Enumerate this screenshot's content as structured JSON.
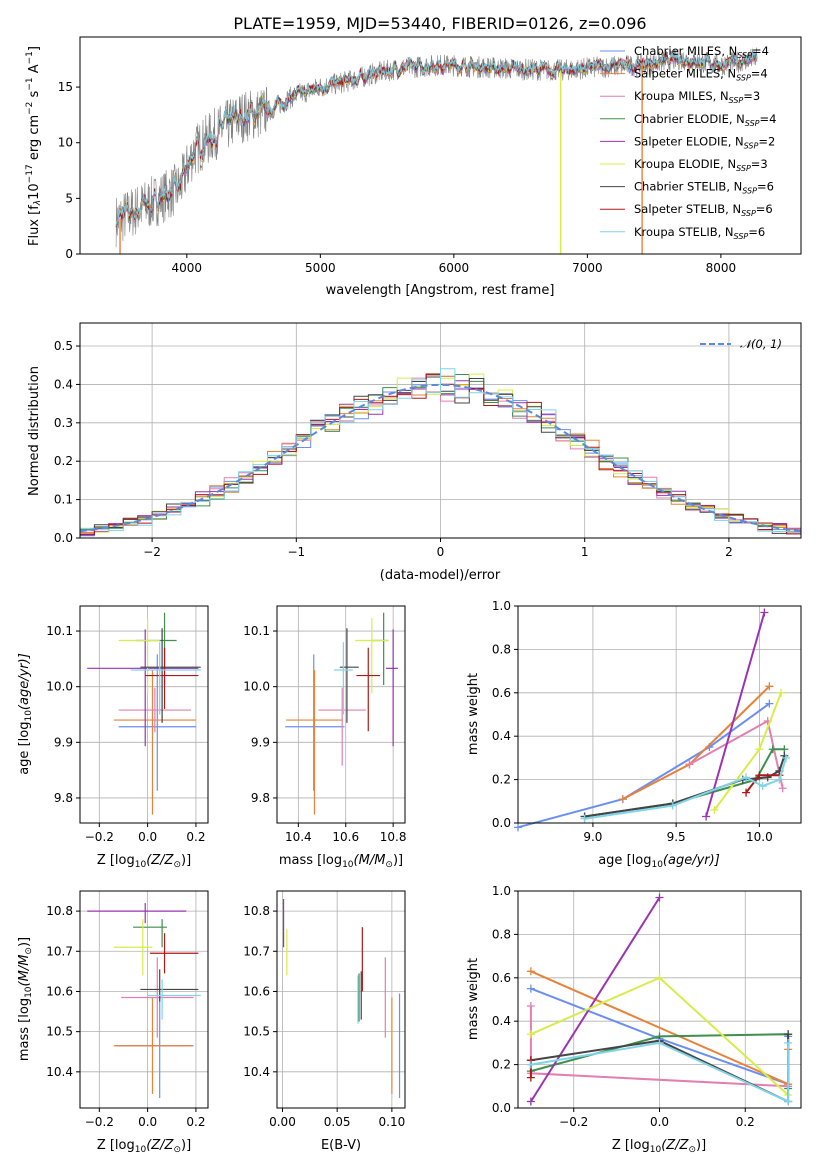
{
  "title": "PLATE=1959, MJD=53440, FIBERID=0126, z=0.096",
  "models": [
    {
      "name": "Chabrier MILES, N$_{SSP}$=4",
      "leg_main": "Chabrier MILES, N",
      "leg_sub": "SSP",
      "leg_tail": "=4",
      "color": "#6b8ff0"
    },
    {
      "name": "Salpeter MILES, N$_{SSP}$=4",
      "leg_main": "Salpeter MILES, N",
      "leg_sub": "SSP",
      "leg_tail": "=4",
      "color": "#e8823a"
    },
    {
      "name": "Kroupa MILES, N$_{SSP}$=3",
      "leg_main": "Kroupa MILES, N",
      "leg_sub": "SSP",
      "leg_tail": "=3",
      "color": "#e27fb0"
    },
    {
      "name": "Chabrier ELODIE, N$_{SSP}$=4",
      "leg_main": "Chabrier ELODIE, N",
      "leg_sub": "SSP",
      "leg_tail": "=4",
      "color": "#3f8f4f"
    },
    {
      "name": "Salpeter ELODIE, N$_{SSP}$=2",
      "leg_main": "Salpeter ELODIE, N",
      "leg_sub": "SSP",
      "leg_tail": "=2",
      "color": "#9b33b3"
    },
    {
      "name": "Kroupa ELODIE, N$_{SSP}$=3",
      "leg_main": "Kroupa ELODIE, N",
      "leg_sub": "SSP",
      "leg_tail": "=3",
      "color": "#d8ec4a"
    },
    {
      "name": "Chabrier STELIB, N$_{SSP}$=6",
      "leg_main": "Chabrier STELIB, N",
      "leg_sub": "SSP",
      "leg_tail": "=6",
      "color": "#454545"
    },
    {
      "name": "Salpeter STELIB, N$_{SSP}$=6",
      "leg_main": "Salpeter STELIB, N",
      "leg_sub": "SSP",
      "leg_tail": "=6",
      "color": "#b01818"
    },
    {
      "name": "Kroupa STELIB, N$_{SSP}$=6",
      "leg_main": "Kroupa STELIB, N",
      "leg_sub": "SSP",
      "leg_tail": "=6",
      "color": "#7fd4e8"
    }
  ],
  "data_color": "#808080",
  "chart_data": [
    {
      "id": "spectrum",
      "type": "line",
      "xlabel": "wavelength [Angstrom, rest frame]",
      "ylabel_main": "Flux [f",
      "ylabel_rest": "10",
      "ylabel_exp": "−17",
      "ylabel_unit": " erg cm",
      "ylabel_e2": "−2",
      "ylabel_s": " s",
      "ylabel_e1": "−1",
      "ylabel_a": " A",
      "ylabel_e3": "−1",
      "ylabel_close": "]",
      "xlim": [
        3200,
        8600
      ],
      "ylim": [
        0,
        19.5
      ],
      "xticks": [
        4000,
        5000,
        6000,
        7000,
        8000
      ],
      "yticks": [
        0,
        5,
        10,
        15
      ],
      "wavelength_range": [
        3470,
        8270
      ],
      "continuum": [
        [
          3470,
          3.0
        ],
        [
          3600,
          3.8
        ],
        [
          3800,
          5.0
        ],
        [
          3950,
          6.0
        ],
        [
          4050,
          9.2
        ],
        [
          4200,
          10.7
        ],
        [
          4400,
          12.3
        ],
        [
          4600,
          12.8
        ],
        [
          4800,
          14.2
        ],
        [
          5000,
          15.0
        ],
        [
          5200,
          15.5
        ],
        [
          5400,
          16.2
        ],
        [
          5600,
          16.7
        ],
        [
          5900,
          17.0
        ],
        [
          6200,
          16.8
        ],
        [
          6500,
          16.6
        ],
        [
          6800,
          16.5
        ],
        [
          7100,
          16.8
        ],
        [
          7400,
          17.0
        ],
        [
          7700,
          17.5
        ],
        [
          8000,
          17.0
        ],
        [
          8270,
          17.6
        ]
      ],
      "spikes": [
        [
          3500,
          0
        ],
        [
          6800,
          0
        ],
        [
          7410,
          0
        ]
      ],
      "legend_loc": "upper right"
    },
    {
      "id": "residuals",
      "type": "histogram",
      "xlabel": "(data-model)/error",
      "ylabel": "Normed distribution",
      "xlim": [
        -2.5,
        2.5
      ],
      "ylim": [
        0,
        0.56
      ],
      "xticks": [
        -2,
        -1,
        0,
        1,
        2
      ],
      "xtick_labels": [
        "−2",
        "−1",
        "0",
        "1",
        "2"
      ],
      "yticks": [
        0.0,
        0.1,
        0.2,
        0.3,
        0.4,
        0.5
      ],
      "bin_width": 0.1,
      "reference_curve": "𝒩(0, 1)",
      "legend_loc": "upper right"
    },
    {
      "id": "age_vs_Z",
      "type": "scatter",
      "xlabel_main": "Z [log",
      "xlabel_sub": "10",
      "xlabel_rest": "(Z/Z",
      "xlabel_sun": "⊙",
      "xlabel_close": ")]",
      "ylabel_main": "age  [log",
      "ylabel_sub": "10",
      "ylabel_rest": "(age/yr)]",
      "xlim": [
        -0.28,
        0.25
      ],
      "ylim": [
        9.755,
        10.145
      ],
      "xticks": [
        -0.2,
        0.0,
        0.2
      ],
      "xtick_labels": [
        "−0.2",
        "0.0",
        "0.2"
      ],
      "yticks": [
        9.8,
        9.9,
        10.0,
        10.1
      ],
      "points": [
        {
          "x": 0.04,
          "y": 9.928,
          "xerr": [
            0.16,
            0.16
          ],
          "yerr": [
            0.115,
            0.13
          ]
        },
        {
          "x": 0.02,
          "y": 9.94,
          "xerr": [
            0.16,
            0.18
          ],
          "yerr": [
            0.17,
            0.09
          ]
        },
        {
          "x": 0.03,
          "y": 9.958,
          "xerr": [
            0.15,
            0.15
          ],
          "yerr": [
            0.04,
            0.04
          ]
        },
        {
          "x": 0.07,
          "y": 10.083,
          "xerr": [
            0.12,
            0.05
          ],
          "yerr": [
            0.08,
            0.05
          ]
        },
        {
          "x": -0.01,
          "y": 10.033,
          "xerr": [
            0.24,
            0.22
          ],
          "yerr": [
            0.14,
            0.07
          ]
        },
        {
          "x": 0.0,
          "y": 10.083,
          "xerr": [
            0.12,
            0.05
          ],
          "yerr": [
            0.095,
            0.04
          ]
        },
        {
          "x": 0.06,
          "y": 10.035,
          "xerr": [
            0.09,
            0.16
          ],
          "yerr": [
            0.1,
            0.07
          ]
        },
        {
          "x": 0.07,
          "y": 10.02,
          "xerr": [
            0.08,
            0.14
          ],
          "yerr": [
            0.06,
            0.05
          ]
        },
        {
          "x": 0.05,
          "y": 10.03,
          "xerr": [
            0.12,
            0.17
          ],
          "yerr": [
            0.08,
            0.05
          ]
        }
      ]
    },
    {
      "id": "age_vs_mass",
      "type": "scatter",
      "xlabel_main": "mass [log",
      "xlabel_sub": "10",
      "xlabel_rest": "(M/M",
      "xlabel_sun": "⊙",
      "xlabel_close": ")]",
      "xlim": [
        10.31,
        10.85
      ],
      "ylim": [
        9.755,
        10.145
      ],
      "xticks": [
        10.4,
        10.6,
        10.8
      ],
      "xtick_labels": [
        "10.4",
        "10.6",
        "10.8"
      ],
      "yticks": [
        9.8,
        9.9,
        10.0,
        10.1
      ],
      "points": [
        {
          "x": 10.465,
          "y": 9.928,
          "xerr": [
            0.12,
            0.13
          ],
          "yerr": [
            0.115,
            0.13
          ]
        },
        {
          "x": 10.468,
          "y": 9.94,
          "xerr": [
            0.12,
            0.12
          ],
          "yerr": [
            0.17,
            0.09
          ]
        },
        {
          "x": 10.585,
          "y": 9.958,
          "xerr": [
            0.1,
            0.1
          ],
          "yerr": [
            0.1,
            0.04
          ]
        },
        {
          "x": 10.76,
          "y": 10.083,
          "xerr": [
            0.05,
            0.02
          ],
          "yerr": [
            0.08,
            0.05
          ]
        },
        {
          "x": 10.8,
          "y": 10.033,
          "xerr": [
            0.03,
            0.02
          ],
          "yerr": [
            0.14,
            0.07
          ]
        },
        {
          "x": 10.71,
          "y": 10.083,
          "xerr": [
            0.07,
            0.07
          ],
          "yerr": [
            0.095,
            0.04
          ]
        },
        {
          "x": 10.605,
          "y": 10.035,
          "xerr": [
            0.03,
            0.05
          ],
          "yerr": [
            0.1,
            0.07
          ]
        },
        {
          "x": 10.695,
          "y": 10.02,
          "xerr": [
            0.05,
            0.05
          ],
          "yerr": [
            0.1,
            0.05
          ]
        },
        {
          "x": 10.59,
          "y": 10.03,
          "xerr": [
            0.04,
            0.04
          ],
          "yerr": [
            0.08,
            0.05
          ]
        }
      ]
    },
    {
      "id": "weight_vs_age",
      "type": "line",
      "xlabel_main": "age  [log",
      "xlabel_sub": "10",
      "xlabel_rest": "(age/yr)]",
      "ylabel": "mass weight",
      "xlim": [
        8.55,
        10.25
      ],
      "ylim": [
        0,
        1
      ],
      "xticks": [
        9.0,
        9.5,
        10.0
      ],
      "xtick_labels": [
        "9.0",
        "9.5",
        "10.0"
      ],
      "yticks": [
        0.0,
        0.2,
        0.4,
        0.6,
        0.8,
        1.0
      ],
      "ytick_labels": [
        "0.0",
        "0.2",
        "0.4",
        "0.6",
        "0.8",
        "1.0"
      ],
      "series": [
        {
          "x": [
            8.55,
            9.18,
            9.7,
            10.06
          ],
          "y": [
            -0.02,
            0.11,
            0.35,
            0.55
          ]
        },
        {
          "x": [
            9.18,
            9.58,
            10.06
          ],
          "y": [
            0.11,
            0.27,
            0.63
          ]
        },
        {
          "x": [
            9.58,
            10.05,
            10.14
          ],
          "y": [
            0.27,
            0.47,
            0.16
          ]
        },
        {
          "x": [
            8.95,
            9.48,
            9.98,
            10.08,
            10.15
          ],
          "y": [
            0.03,
            0.09,
            0.2,
            0.34,
            0.34
          ]
        },
        {
          "x": [
            9.68,
            10.03
          ],
          "y": [
            0.03,
            0.97
          ]
        },
        {
          "x": [
            9.73,
            10.0,
            10.13
          ],
          "y": [
            0.06,
            0.34,
            0.6
          ]
        },
        {
          "x": [
            8.95,
            9.48,
            9.9,
            10.05,
            10.12,
            10.15
          ],
          "y": [
            0.03,
            0.09,
            0.2,
            0.21,
            0.24,
            0.31
          ]
        },
        {
          "x": [
            9.92,
            10.0,
            10.12
          ],
          "y": [
            0.14,
            0.22,
            0.22
          ]
        },
        {
          "x": [
            8.95,
            9.48,
            9.92,
            10.02,
            10.12,
            10.16
          ],
          "y": [
            0.02,
            0.08,
            0.21,
            0.17,
            0.2,
            0.3
          ]
        }
      ]
    },
    {
      "id": "mass_vs_Z",
      "type": "scatter",
      "xlabel_main": "Z [log",
      "xlabel_sub": "10",
      "xlabel_rest": "(Z/Z",
      "xlabel_sun": "⊙",
      "xlabel_close": ")]",
      "ylabel_main": "mass [log",
      "ylabel_sub": "10",
      "ylabel_rest": "(M/M",
      "ylabel_sun": "⊙",
      "ylabel_close": ")]",
      "xlim": [
        -0.28,
        0.25
      ],
      "ylim": [
        10.31,
        10.85
      ],
      "xticks": [
        -0.2,
        0.0,
        0.2
      ],
      "xtick_labels": [
        "−0.2",
        "0.0",
        "0.2"
      ],
      "yticks": [
        10.4,
        10.5,
        10.6,
        10.7,
        10.8
      ],
      "points": [
        {
          "x": 0.05,
          "y": 10.465,
          "xerr": [
            0.18,
            0.14
          ],
          "yerr": [
            0.13,
            0.13
          ]
        },
        {
          "x": 0.02,
          "y": 10.465,
          "xerr": [
            0.16,
            0.16
          ],
          "yerr": [
            0.12,
            0.12
          ]
        },
        {
          "x": 0.04,
          "y": 10.585,
          "xerr": [
            0.15,
            0.15
          ],
          "yerr": [
            0.1,
            0.1
          ]
        },
        {
          "x": 0.06,
          "y": 10.76,
          "xerr": [
            0.12,
            0.02
          ],
          "yerr": [
            0.05,
            0.02
          ]
        },
        {
          "x": -0.01,
          "y": 10.8,
          "xerr": [
            0.24,
            0.17
          ],
          "yerr": [
            0.03,
            0.02
          ]
        },
        {
          "x": -0.02,
          "y": 10.71,
          "xerr": [
            0.12,
            0.04
          ],
          "yerr": [
            0.07,
            0.07
          ]
        },
        {
          "x": 0.05,
          "y": 10.605,
          "xerr": [
            0.08,
            0.16
          ],
          "yerr": [
            0.03,
            0.05
          ]
        },
        {
          "x": 0.07,
          "y": 10.695,
          "xerr": [
            0.06,
            0.14
          ],
          "yerr": [
            0.05,
            0.05
          ]
        },
        {
          "x": 0.06,
          "y": 10.59,
          "xerr": [
            0.06,
            0.16
          ],
          "yerr": [
            0.06,
            0.04
          ]
        }
      ]
    },
    {
      "id": "mass_vs_ebv",
      "type": "scatter",
      "xlabel": "E(B-V)",
      "xlim": [
        -0.005,
        0.112
      ],
      "ylim": [
        10.31,
        10.85
      ],
      "xticks": [
        0.0,
        0.05,
        0.1
      ],
      "xtick_labels": [
        "0.00",
        "0.05",
        "0.10"
      ],
      "yticks": [
        10.4,
        10.5,
        10.6,
        10.7,
        10.8
      ],
      "points": [
        {
          "x": 0.107,
          "y": 10.465,
          "xerr": [
            0,
            0
          ],
          "yerr": [
            0.13,
            0.13
          ]
        },
        {
          "x": 0.1,
          "y": 10.465,
          "xerr": [
            0,
            0
          ],
          "yerr": [
            0.12,
            0.12
          ]
        },
        {
          "x": 0.094,
          "y": 10.585,
          "xerr": [
            0,
            0
          ],
          "yerr": [
            0.1,
            0.1
          ]
        },
        {
          "x": 0.07,
          "y": 10.585,
          "xerr": [
            0,
            0
          ],
          "yerr": [
            0.06,
            0.06
          ]
        },
        {
          "x": 0.001,
          "y": 10.76,
          "xerr": [
            0,
            0
          ],
          "yerr": [
            0.05,
            0.07
          ]
        },
        {
          "x": 0.004,
          "y": 10.695,
          "xerr": [
            0,
            0
          ],
          "yerr": [
            0.055,
            0.06
          ]
        },
        {
          "x": 0.072,
          "y": 10.6,
          "xerr": [
            0,
            0
          ],
          "yerr": [
            0.07,
            0.05
          ]
        },
        {
          "x": 0.073,
          "y": 10.68,
          "xerr": [
            0,
            0
          ],
          "yerr": [
            0.08,
            0.08
          ]
        },
        {
          "x": 0.069,
          "y": 10.58,
          "xerr": [
            0,
            0
          ],
          "yerr": [
            0.06,
            0.06
          ]
        }
      ]
    },
    {
      "id": "weight_vs_Z",
      "type": "line",
      "xlabel_main": "Z [log",
      "xlabel_sub": "10",
      "xlabel_rest": "(Z/Z",
      "xlabel_sun": "⊙",
      "xlabel_close": ")]",
      "ylabel": "mass weight",
      "xlim": [
        -0.33,
        0.33
      ],
      "ylim": [
        0,
        1
      ],
      "xticks": [
        -0.2,
        0.0,
        0.2
      ],
      "xtick_labels": [
        "−0.2",
        "0.0",
        "0.2"
      ],
      "yticks": [
        0.0,
        0.2,
        0.4,
        0.6,
        0.8,
        1.0
      ],
      "ytick_labels": [
        "0.0",
        "0.2",
        "0.4",
        "0.6",
        "0.8",
        "1.0"
      ],
      "series": [
        {
          "x": [
            -0.3,
            0.0,
            0.3,
            0.3
          ],
          "y": [
            0.55,
            0.32,
            0.11,
            0.33
          ]
        },
        {
          "x": [
            -0.3,
            0.3,
            0.3
          ],
          "y": [
            0.63,
            0.11,
            0.27
          ]
        },
        {
          "x": [
            -0.3,
            -0.3,
            0.3
          ],
          "y": [
            0.47,
            0.16,
            0.1
          ]
        },
        {
          "x": [
            -0.3,
            0.0,
            0.3,
            0.3
          ],
          "y": [
            0.17,
            0.33,
            0.34,
            0.09
          ]
        },
        {
          "x": [
            -0.3,
            0.0
          ],
          "y": [
            0.03,
            0.97
          ]
        },
        {
          "x": [
            -0.3,
            0.0,
            0.3
          ],
          "y": [
            0.34,
            0.6,
            0.06
          ]
        },
        {
          "x": [
            -0.3,
            0.0,
            0.3,
            0.3
          ],
          "y": [
            0.22,
            0.31,
            0.03,
            0.34
          ]
        },
        {
          "x": [
            -0.3,
            -0.3
          ],
          "y": [
            0.14,
            0.22
          ]
        },
        {
          "x": [
            -0.3,
            0.0,
            0.3,
            0.3
          ],
          "y": [
            0.2,
            0.3,
            0.03,
            0.3
          ]
        }
      ]
    }
  ]
}
